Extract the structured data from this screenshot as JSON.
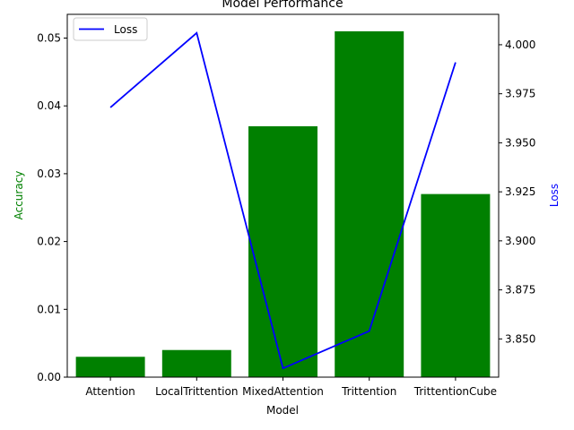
{
  "chart_data": {
    "type": "bar",
    "title": "Model Performance",
    "xlabel": "Model",
    "categories": [
      "Attention",
      "LocalTrittention",
      "MixedAttention",
      "Trittention",
      "TrittentionCube"
    ],
    "series": [
      {
        "name": "",
        "chart_type": "bar",
        "axis": "left",
        "color": "#008000",
        "values": [
          0.003,
          0.004,
          0.037,
          0.051,
          0.027
        ]
      },
      {
        "name": "Loss",
        "chart_type": "line",
        "axis": "right",
        "color": "#0000ff",
        "values": [
          3.968,
          4.006,
          3.835,
          3.854,
          3.991
        ]
      }
    ],
    "y_left": {
      "label": "Accuracy",
      "label_color": "#008000",
      "ylim": [
        0,
        0.0535
      ],
      "ticks": [
        0.0,
        0.01,
        0.02,
        0.03,
        0.04,
        0.05
      ],
      "tick_labels": [
        "0.00",
        "0.01",
        "0.02",
        "0.03",
        "0.04",
        "0.05"
      ]
    },
    "y_right": {
      "label": "Loss",
      "label_color": "#0000ff",
      "ylim": [
        3.8305,
        4.0155
      ],
      "ticks": [
        3.85,
        3.875,
        3.9,
        3.925,
        3.95,
        3.975,
        4.0
      ],
      "tick_labels": [
        "3.850",
        "3.875",
        "3.900",
        "3.925",
        "3.950",
        "3.975",
        "4.000"
      ]
    },
    "grid": false,
    "legend": {
      "placement": "top-left",
      "entries": [
        "Loss"
      ]
    }
  }
}
